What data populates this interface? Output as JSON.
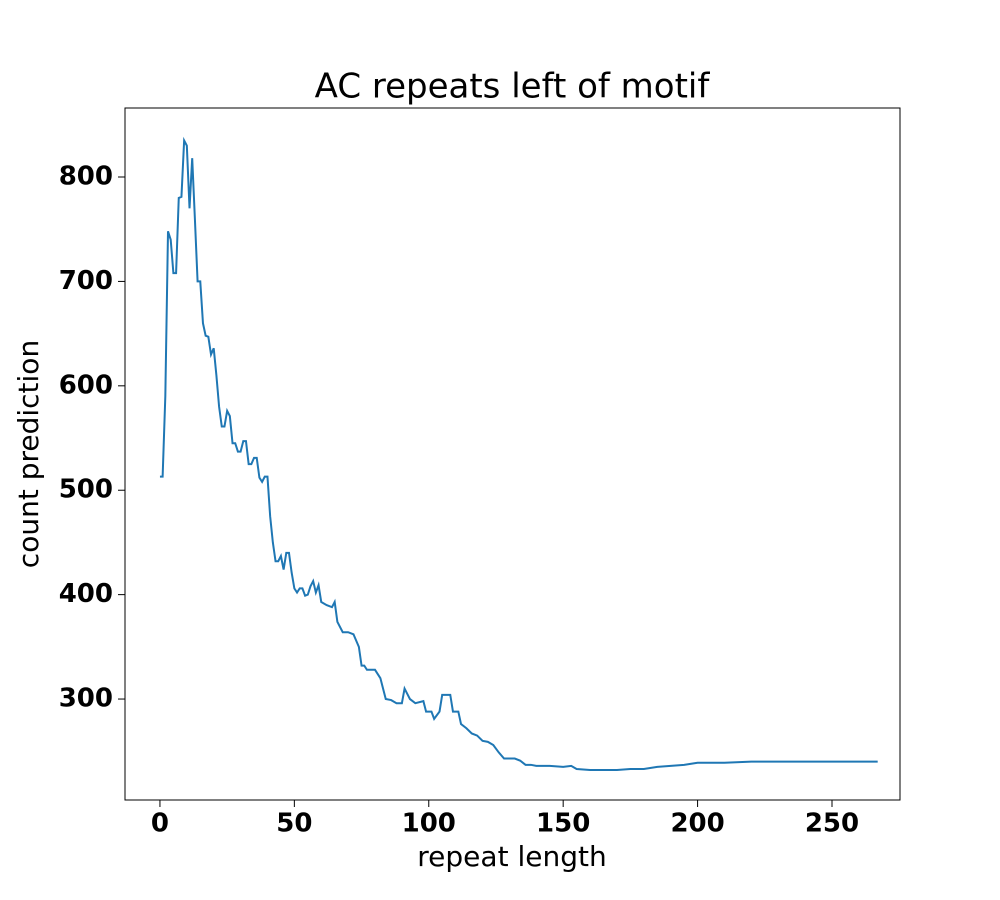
{
  "chart_data": {
    "type": "line",
    "title": "AC repeats left of motif",
    "xlabel": "repeat length",
    "ylabel": "count prediction",
    "x": [
      0,
      1,
      2,
      3,
      4,
      5,
      6,
      7,
      8,
      9,
      10,
      11,
      12,
      13,
      14,
      15,
      16,
      17,
      18,
      19,
      20,
      21,
      22,
      23,
      24,
      25,
      26,
      27,
      28,
      29,
      30,
      31,
      32,
      33,
      34,
      35,
      36,
      37,
      38,
      39,
      40,
      41,
      42,
      43,
      44,
      45,
      46,
      47,
      48,
      49,
      50,
      51,
      52,
      53,
      54,
      55,
      56,
      57,
      58,
      59,
      60,
      62,
      64,
      65,
      66,
      68,
      70,
      72,
      74,
      75,
      76,
      77,
      80,
      82,
      84,
      86,
      88,
      90,
      91,
      93,
      95,
      98,
      99,
      101,
      102,
      104,
      105,
      108,
      109,
      111,
      112,
      114,
      116,
      118,
      120,
      122,
      124,
      126,
      128,
      132,
      134,
      136,
      138,
      140,
      145,
      150,
      153,
      155,
      160,
      165,
      170,
      175,
      180,
      185,
      190,
      195,
      200,
      210,
      220,
      230,
      240,
      250,
      267
    ],
    "series": [
      {
        "name": "count prediction",
        "color": "#1f77b4",
        "values": [
          513,
          513,
          590,
          748,
          740,
          708,
          708,
          780,
          781,
          835,
          830,
          770,
          818,
          760,
          700,
          700,
          660,
          648,
          647,
          630,
          636,
          610,
          580,
          561,
          561,
          576,
          571,
          545,
          545,
          537,
          537,
          547,
          547,
          525,
          525,
          531,
          531,
          512,
          508,
          513,
          513,
          475,
          450,
          432,
          432,
          437,
          424,
          440,
          440,
          421,
          406,
          402,
          406,
          406,
          399,
          400,
          408,
          413,
          402,
          409,
          393,
          390,
          388,
          393,
          374,
          364,
          364,
          362,
          350,
          332,
          332,
          328,
          328,
          320,
          300,
          299,
          296,
          296,
          310,
          300,
          296,
          298,
          288,
          288,
          281,
          288,
          304,
          304,
          288,
          288,
          276,
          272,
          267,
          265,
          260,
          259,
          256,
          249,
          243,
          243,
          241,
          237,
          237,
          236,
          236,
          235,
          236,
          233,
          232,
          232,
          232,
          233,
          233,
          235,
          236,
          237,
          239,
          239,
          240,
          240,
          240,
          240,
          240
        ]
      }
    ],
    "xlim": [
      -13,
      275.3
    ],
    "ylim": [
      203.3,
      866.1
    ],
    "xticks": [
      0,
      50,
      100,
      150,
      200,
      250
    ],
    "yticks": [
      300,
      400,
      500,
      600,
      700,
      800
    ]
  }
}
